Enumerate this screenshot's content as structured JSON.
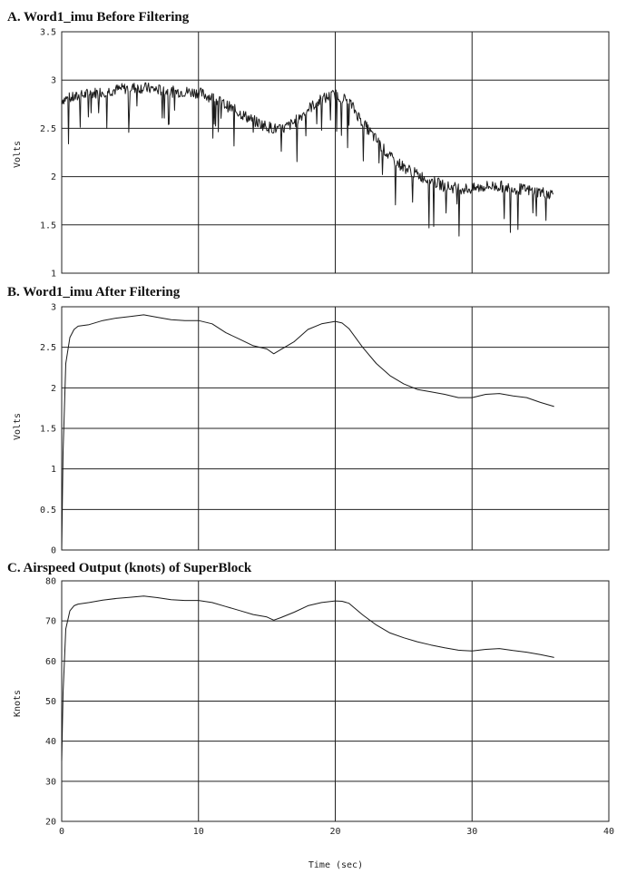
{
  "chart_data": [
    {
      "type": "line",
      "title": "A. Word1_imu Before Filtering",
      "ylabel": "Volts",
      "xlim": [
        0,
        40
      ],
      "ylim": [
        1,
        3.5
      ],
      "xticks": [],
      "yticks": [
        "1",
        "1.5",
        "2",
        "2.5",
        "3",
        "3.5"
      ],
      "grid": true,
      "noisy": true,
      "series": [
        {
          "x": [
            0,
            1,
            2,
            3,
            4,
            5,
            6,
            7,
            8,
            9,
            10,
            11,
            12,
            13,
            14,
            15,
            16,
            17,
            18,
            19,
            20,
            21,
            22,
            23,
            24,
            25,
            26,
            27,
            28,
            29,
            30,
            31,
            32,
            33,
            34,
            35,
            36
          ],
          "y": [
            2.8,
            2.82,
            2.86,
            2.88,
            2.9,
            2.92,
            2.92,
            2.9,
            2.88,
            2.88,
            2.87,
            2.82,
            2.74,
            2.66,
            2.58,
            2.52,
            2.48,
            2.56,
            2.7,
            2.8,
            2.85,
            2.78,
            2.56,
            2.38,
            2.2,
            2.1,
            2.02,
            1.96,
            1.9,
            1.88,
            1.87,
            1.9,
            1.9,
            1.88,
            1.86,
            1.84,
            1.82
          ]
        }
      ]
    },
    {
      "type": "line",
      "title": "B. Word1_imu After Filtering",
      "ylabel": "Volts",
      "xlim": [
        0,
        40
      ],
      "ylim": [
        0,
        3
      ],
      "xticks": [],
      "yticks": [
        "0",
        "0.5",
        "1",
        "1.5",
        "2",
        "2.5",
        "3"
      ],
      "grid": true,
      "noisy": false,
      "series": [
        {
          "x": [
            0,
            0.1,
            0.3,
            0.6,
            0.9,
            1.2,
            2,
            3,
            4,
            5,
            6,
            7,
            8,
            9,
            10,
            11,
            12,
            13,
            14,
            15,
            15.5,
            16,
            17,
            18,
            19,
            20,
            20.5,
            21,
            22,
            23,
            24,
            25,
            26,
            27,
            28,
            29,
            30,
            31,
            32,
            33,
            34,
            35,
            36
          ],
          "y": [
            0.0,
            1.2,
            2.3,
            2.62,
            2.72,
            2.76,
            2.78,
            2.83,
            2.86,
            2.88,
            2.9,
            2.87,
            2.84,
            2.83,
            2.83,
            2.79,
            2.68,
            2.6,
            2.52,
            2.48,
            2.42,
            2.47,
            2.57,
            2.72,
            2.79,
            2.82,
            2.8,
            2.73,
            2.5,
            2.3,
            2.15,
            2.05,
            1.98,
            1.95,
            1.92,
            1.88,
            1.88,
            1.92,
            1.93,
            1.9,
            1.88,
            1.82,
            1.77
          ]
        }
      ]
    },
    {
      "type": "line",
      "title": "C. Airspeed Output (knots) of SuperBlock",
      "ylabel": "Knots",
      "xlabel": "Time (sec)",
      "xlim": [
        0,
        40
      ],
      "ylim": [
        20,
        80
      ],
      "xticks": [
        "0",
        "10",
        "20",
        "30",
        "40"
      ],
      "yticks": [
        "20",
        "30",
        "40",
        "50",
        "60",
        "70",
        "80"
      ],
      "grid": true,
      "noisy": false,
      "series": [
        {
          "x": [
            0,
            0.1,
            0.3,
            0.6,
            0.9,
            1.2,
            2,
            3,
            4,
            5,
            6,
            7,
            8,
            9,
            10,
            11,
            12,
            13,
            14,
            15,
            15.5,
            16,
            17,
            18,
            19,
            20,
            20.5,
            21,
            22,
            23,
            24,
            25,
            26,
            27,
            28,
            29,
            30,
            31,
            32,
            33,
            34,
            35,
            36
          ],
          "y": [
            35,
            52,
            68,
            72.5,
            73.8,
            74.2,
            74.6,
            75.2,
            75.6,
            75.9,
            76.2,
            75.8,
            75.3,
            75.1,
            75.1,
            74.6,
            73.6,
            72.6,
            71.6,
            71.0,
            70.2,
            70.8,
            72.2,
            73.8,
            74.6,
            75.0,
            74.9,
            74.4,
            71.5,
            69.0,
            67.0,
            65.8,
            64.8,
            64.0,
            63.3,
            62.7,
            62.5,
            62.9,
            63.1,
            62.6,
            62.2,
            61.6,
            60.9
          ]
        }
      ]
    }
  ]
}
